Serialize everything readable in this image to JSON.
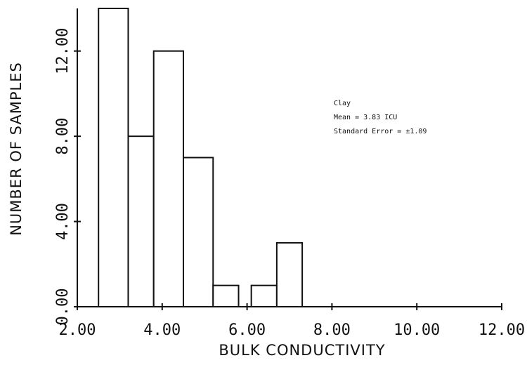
{
  "chart_data": {
    "type": "bar",
    "xlabel": "BULK CONDUCTIVITY",
    "ylabel": "NUMBER OF SAMPLES",
    "xlim": [
      2.0,
      12.0
    ],
    "ylim": [
      0,
      14
    ],
    "x_ticks": [
      2.0,
      4.0,
      6.0,
      8.0,
      10.0,
      12.0
    ],
    "x_tick_labels": [
      "2.00",
      "4.00",
      "6.00",
      "8.00",
      "10.00",
      "12.00"
    ],
    "y_ticks": [
      0,
      4,
      8,
      12
    ],
    "y_tick_labels": [
      "0.00",
      "4.00",
      "8.00",
      "12.00"
    ],
    "bins": [
      {
        "x0": 2.5,
        "x1": 3.2,
        "value": 14
      },
      {
        "x0": 3.2,
        "x1": 3.8,
        "value": 8
      },
      {
        "x0": 3.8,
        "x1": 4.5,
        "value": 12
      },
      {
        "x0": 4.5,
        "x1": 5.2,
        "value": 7
      },
      {
        "x0": 5.2,
        "x1": 5.8,
        "value": 1
      },
      {
        "x0": 5.8,
        "x1": 6.1,
        "value": 0
      },
      {
        "x0": 6.1,
        "x1": 6.7,
        "value": 1
      },
      {
        "x0": 6.7,
        "x1": 7.3,
        "value": 3
      }
    ],
    "annotations": [
      "Clay",
      "Mean = 3.83 ICU",
      "Standard Error = ±1.09"
    ],
    "grid": false,
    "legend": "none"
  }
}
